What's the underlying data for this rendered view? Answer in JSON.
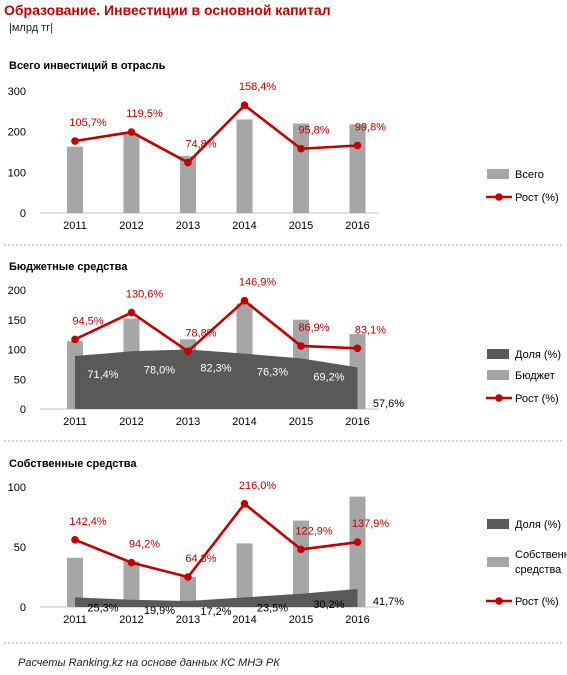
{
  "header": {
    "title": "Образование. Инвестиции в основной капитал",
    "unit": "|млрд тг|"
  },
  "footer": {
    "note": "Расчеты Ranking.kz на основе данных КС МНЭ РК"
  },
  "colors": {
    "title": "#c00000",
    "bar": "#a6a6a6",
    "line": "#c00000",
    "area": "#595959",
    "separator": "#a6a6a6"
  },
  "chart_data": [
    {
      "type": "bar",
      "title": "Всего инвестиций в отрасль",
      "categories": [
        "2011",
        "2012",
        "2013",
        "2014",
        "2015",
        "2016"
      ],
      "ylim": [
        0,
        300
      ],
      "yticks": [
        "0",
        "100",
        "200",
        "300"
      ],
      "legend_position": "right",
      "series": [
        {
          "name": "Всего",
          "type": "bar",
          "values": [
            163,
            195,
            140,
            230,
            220,
            218
          ]
        },
        {
          "name": "Рост (%)",
          "type": "line",
          "values": [
            177,
            199,
            124,
            265,
            158,
            166
          ],
          "labels": [
            "105,7%",
            "119,5%",
            "74,8%",
            "158,4%",
            "95,8%",
            "99,8%"
          ]
        }
      ]
    },
    {
      "type": "bar",
      "title": "Бюджетные средства",
      "categories": [
        "2011",
        "2012",
        "2013",
        "2014",
        "2015",
        "2016"
      ],
      "ylim": [
        0,
        200
      ],
      "yticks": [
        "0",
        "50",
        "100",
        "150",
        "200"
      ],
      "legend_position": "right",
      "series": [
        {
          "name": "Доля (%)",
          "type": "area",
          "values": [
            89,
            97,
            100,
            93,
            85,
            70
          ],
          "labels": [
            "71,4%",
            "78,0%",
            "82,3%",
            "76,3%",
            "69,2%",
            "57,6%"
          ]
        },
        {
          "name": "Бюджет",
          "type": "bar",
          "values": [
            114,
            152,
            117,
            177,
            150,
            126
          ]
        },
        {
          "name": "Рост (%)",
          "type": "line",
          "values": [
            117,
            162,
            97,
            182,
            106,
            102
          ],
          "labels": [
            "94,5%",
            "130,6%",
            "78,8%",
            "146,9%",
            "86,9%",
            "83,1%"
          ]
        }
      ]
    },
    {
      "type": "bar",
      "title": "Собственные средства",
      "categories": [
        "2011",
        "2012",
        "2013",
        "2014",
        "2015",
        "2016"
      ],
      "ylim": [
        0,
        100
      ],
      "yticks": [
        "0",
        "50",
        "100"
      ],
      "legend_position": "right",
      "series": [
        {
          "name": "Доля (%)",
          "type": "area",
          "values": [
            8,
            6,
            5,
            8,
            11,
            15
          ],
          "labels": [
            "25,3%",
            "19,9%",
            "17,2%",
            "23,5%",
            "30,2%",
            "41,7%"
          ]
        },
        {
          "name": "Собственные средства",
          "type": "bar",
          "values": [
            41,
            38,
            25,
            53,
            72,
            92
          ]
        },
        {
          "name": "Рост (%)",
          "type": "line",
          "values": [
            56,
            37,
            25,
            86,
            48,
            54
          ],
          "labels": [
            "142,4%",
            "94,2%",
            "64,8%",
            "216,0%",
            "122,9%",
            "137,9%"
          ]
        }
      ]
    }
  ]
}
